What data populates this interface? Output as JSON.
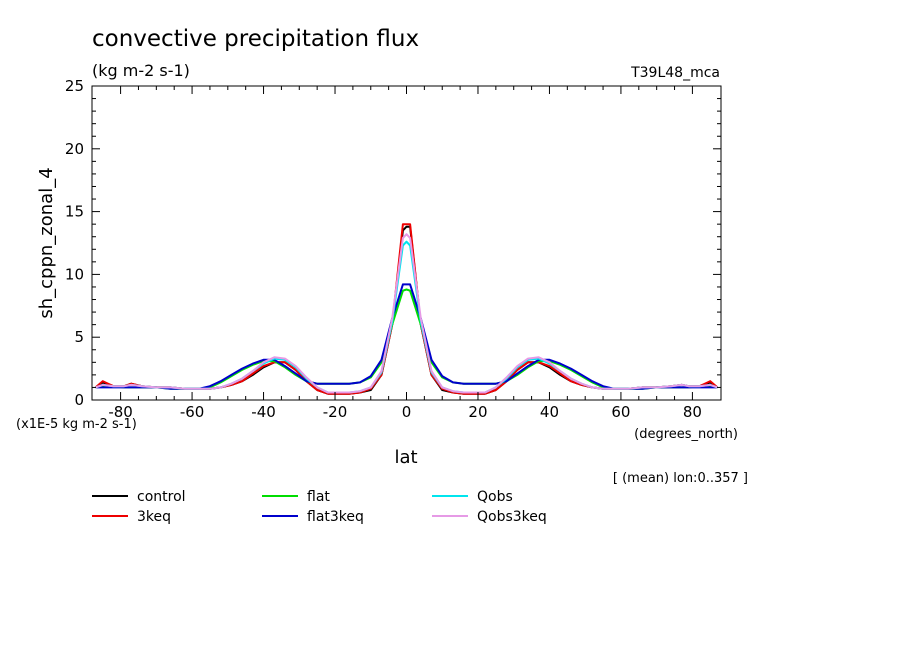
{
  "chart_data": {
    "type": "line",
    "title": "convective precipitation flux",
    "units": "(kg m-2 s-1)",
    "run_label": "T39L48_mca",
    "ylabel": "sh_cppn_zonal_4",
    "xlabel": "lat",
    "x_units": "(degrees_north)",
    "y_scale_note": "(x1E-5 kg m-2 s-1)",
    "averaging_note": "[ (mean) lon:0..357 ]",
    "xlim": [
      -88,
      88
    ],
    "ylim": [
      0,
      25
    ],
    "x_ticks": [
      -80,
      -60,
      -40,
      -20,
      0,
      20,
      40,
      60,
      80
    ],
    "y_ticks": [
      0,
      5,
      10,
      15,
      20,
      25
    ],
    "x": [
      -87,
      -85,
      -82,
      -79,
      -77,
      -74,
      -70,
      -66,
      -62,
      -58,
      -55,
      -52,
      -49,
      -46,
      -43,
      -40,
      -37,
      -34,
      -31,
      -28,
      -25,
      -22,
      -19,
      -16,
      -13,
      -10,
      -7,
      -4,
      -1,
      0,
      1,
      4,
      7,
      10,
      13,
      16,
      19,
      22,
      25,
      28,
      31,
      34,
      37,
      40,
      43,
      46,
      49,
      52,
      55,
      58,
      62,
      66,
      70,
      74,
      77,
      79,
      82,
      85,
      87
    ],
    "series": [
      {
        "name": "control",
        "color": "#000000",
        "values": [
          1.0,
          1.4,
          1.1,
          1.1,
          1.3,
          1.1,
          1.0,
          1.0,
          0.9,
          0.9,
          0.9,
          1.0,
          1.2,
          1.5,
          2.0,
          2.6,
          3.0,
          3.0,
          2.4,
          1.5,
          0.8,
          0.5,
          0.5,
          0.5,
          0.6,
          0.8,
          2.0,
          6.0,
          13.5,
          13.8,
          13.8,
          6.0,
          2.0,
          0.8,
          0.6,
          0.5,
          0.5,
          0.5,
          0.8,
          1.5,
          2.4,
          3.0,
          3.0,
          2.6,
          2.0,
          1.5,
          1.2,
          1.0,
          0.9,
          0.9,
          0.9,
          1.0,
          1.0,
          1.1,
          1.2,
          1.1,
          1.1,
          1.4,
          1.0
        ]
      },
      {
        "name": "3keq",
        "color": "#ee0000",
        "values": [
          1.0,
          1.5,
          1.1,
          1.1,
          1.3,
          1.1,
          1.0,
          1.0,
          0.9,
          0.9,
          0.9,
          1.0,
          1.2,
          1.5,
          2.1,
          2.7,
          3.0,
          3.0,
          2.4,
          1.5,
          0.8,
          0.5,
          0.5,
          0.5,
          0.6,
          0.9,
          2.0,
          6.0,
          14.0,
          14.0,
          14.0,
          6.0,
          2.0,
          0.9,
          0.6,
          0.5,
          0.5,
          0.5,
          0.8,
          1.5,
          2.4,
          3.0,
          3.0,
          2.7,
          2.1,
          1.5,
          1.2,
          1.0,
          0.9,
          0.9,
          0.9,
          1.0,
          1.0,
          1.1,
          1.2,
          1.1,
          1.1,
          1.5,
          1.0
        ]
      },
      {
        "name": "flat",
        "color": "#00dd00",
        "values": [
          1.0,
          1.1,
          1.1,
          1.0,
          1.0,
          1.0,
          1.0,
          0.9,
          0.9,
          0.9,
          1.0,
          1.4,
          1.9,
          2.4,
          2.8,
          3.1,
          3.1,
          2.6,
          2.0,
          1.5,
          1.3,
          1.3,
          1.3,
          1.3,
          1.4,
          1.8,
          3.0,
          6.0,
          8.7,
          8.8,
          8.7,
          6.0,
          3.0,
          1.8,
          1.4,
          1.3,
          1.3,
          1.3,
          1.3,
          1.5,
          2.0,
          2.6,
          3.1,
          3.1,
          2.8,
          2.4,
          1.9,
          1.4,
          1.0,
          0.9,
          0.9,
          0.9,
          1.0,
          1.0,
          1.0,
          1.0,
          1.1,
          1.1,
          1.0
        ]
      },
      {
        "name": "flat3keq",
        "color": "#0000cc",
        "values": [
          1.0,
          1.0,
          1.0,
          1.0,
          1.0,
          1.0,
          1.0,
          0.9,
          0.9,
          0.9,
          1.1,
          1.5,
          2.0,
          2.5,
          2.9,
          3.2,
          3.2,
          2.7,
          2.1,
          1.5,
          1.3,
          1.3,
          1.3,
          1.3,
          1.4,
          1.9,
          3.2,
          6.5,
          9.2,
          9.2,
          9.2,
          6.5,
          3.2,
          1.9,
          1.4,
          1.3,
          1.3,
          1.3,
          1.3,
          1.5,
          2.1,
          2.7,
          3.2,
          3.2,
          2.9,
          2.5,
          2.0,
          1.5,
          1.1,
          0.9,
          0.9,
          0.9,
          1.0,
          1.0,
          1.0,
          1.0,
          1.0,
          1.0,
          1.0
        ]
      },
      {
        "name": "Qobs",
        "color": "#00e5ee",
        "values": [
          1.0,
          1.2,
          1.1,
          1.1,
          1.2,
          1.1,
          1.0,
          1.0,
          0.9,
          0.9,
          0.9,
          1.0,
          1.3,
          1.7,
          2.3,
          2.9,
          3.3,
          3.2,
          2.6,
          1.7,
          1.0,
          0.6,
          0.6,
          0.6,
          0.7,
          1.0,
          2.2,
          6.2,
          12.3,
          12.6,
          12.3,
          6.2,
          2.2,
          1.0,
          0.7,
          0.6,
          0.6,
          0.6,
          1.0,
          1.7,
          2.6,
          3.2,
          3.3,
          2.9,
          2.3,
          1.7,
          1.3,
          1.0,
          0.9,
          0.9,
          0.9,
          1.0,
          1.0,
          1.1,
          1.2,
          1.1,
          1.1,
          1.2,
          1.0
        ]
      },
      {
        "name": "Qobs3keq",
        "color": "#e69ae6",
        "values": [
          1.0,
          1.2,
          1.1,
          1.1,
          1.2,
          1.1,
          1.0,
          1.0,
          0.9,
          0.9,
          0.9,
          1.0,
          1.3,
          1.7,
          2.3,
          3.0,
          3.4,
          3.3,
          2.7,
          1.8,
          1.0,
          0.6,
          0.6,
          0.6,
          0.7,
          1.0,
          2.3,
          6.5,
          12.9,
          13.2,
          12.9,
          6.5,
          2.3,
          1.0,
          0.7,
          0.6,
          0.6,
          0.6,
          1.0,
          1.8,
          2.7,
          3.3,
          3.4,
          3.0,
          2.3,
          1.7,
          1.3,
          1.0,
          0.9,
          0.9,
          0.9,
          1.0,
          1.0,
          1.1,
          1.2,
          1.1,
          1.1,
          1.2,
          1.0
        ]
      }
    ]
  }
}
